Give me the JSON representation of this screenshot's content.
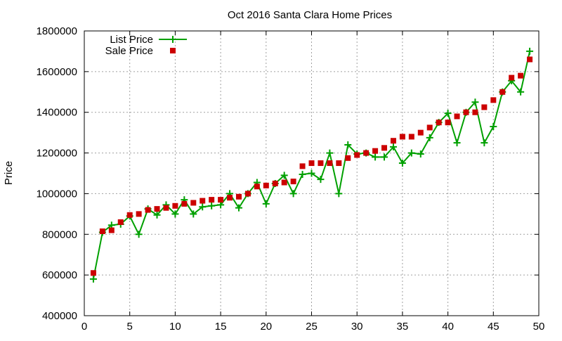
{
  "chart_data": {
    "type": "line",
    "title": "Oct 2016 Santa Clara Home Prices",
    "xlabel": "",
    "ylabel": "Price",
    "xlim": [
      0,
      50
    ],
    "ylim": [
      400000,
      1800000
    ],
    "x_ticks": [
      0,
      5,
      10,
      15,
      20,
      25,
      30,
      35,
      40,
      45,
      50
    ],
    "y_ticks": [
      400000,
      600000,
      800000,
      1000000,
      1200000,
      1400000,
      1600000,
      1800000
    ],
    "x_tick_labels": [
      "0",
      "5",
      "10",
      "15",
      "20",
      "25",
      "30",
      "35",
      "40",
      "45",
      "50"
    ],
    "y_tick_labels": [
      "400000",
      "600000",
      "800000",
      "1000000",
      "1200000",
      "1400000",
      "1600000",
      "1800000"
    ],
    "grid": true,
    "legend_position": "top-left",
    "x": [
      1,
      2,
      3,
      4,
      5,
      6,
      7,
      8,
      9,
      10,
      11,
      12,
      13,
      14,
      15,
      16,
      17,
      18,
      19,
      20,
      21,
      22,
      23,
      24,
      25,
      26,
      27,
      28,
      29,
      30,
      31,
      32,
      33,
      34,
      35,
      36,
      37,
      38,
      39,
      40,
      41,
      42,
      43,
      44,
      45,
      46,
      47,
      48,
      49
    ],
    "series": [
      {
        "name": "List Price",
        "style": "line-plus",
        "color": "#00a000",
        "values": [
          580000,
          810000,
          845000,
          850000,
          890000,
          800000,
          925000,
          895000,
          945000,
          900000,
          970000,
          900000,
          935000,
          940000,
          945000,
          1000000,
          930000,
          1000000,
          1055000,
          950000,
          1050000,
          1090000,
          1000000,
          1095000,
          1100000,
          1070000,
          1200000,
          1000000,
          1240000,
          1195000,
          1200000,
          1180000,
          1180000,
          1230000,
          1150000,
          1200000,
          1195000,
          1275000,
          1350000,
          1395000,
          1250000,
          1400000,
          1450000,
          1250000,
          1330000,
          1500000,
          1555000,
          1500000,
          1700000
        ]
      },
      {
        "name": "Sale Price",
        "style": "square",
        "color": "#cc0000",
        "values": [
          610000,
          815000,
          820000,
          860000,
          895000,
          900000,
          920000,
          925000,
          930000,
          940000,
          950000,
          955000,
          965000,
          970000,
          970000,
          980000,
          985000,
          1000000,
          1035000,
          1040000,
          1050000,
          1055000,
          1060000,
          1135000,
          1150000,
          1150000,
          1150000,
          1150000,
          1175000,
          1190000,
          1200000,
          1210000,
          1225000,
          1260000,
          1280000,
          1280000,
          1300000,
          1325000,
          1350000,
          1350000,
          1380000,
          1400000,
          1400000,
          1425000,
          1460000,
          1500000,
          1570000,
          1580000,
          1660000
        ]
      }
    ]
  }
}
